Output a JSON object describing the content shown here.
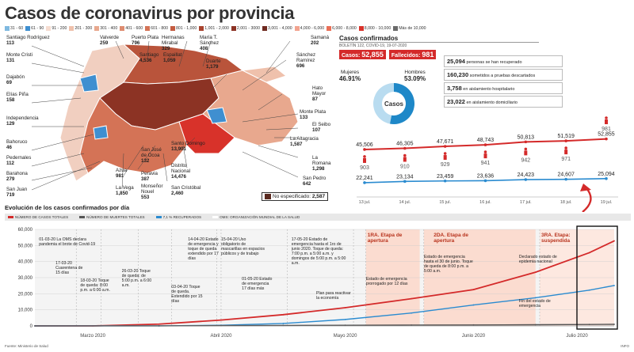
{
  "header": {
    "title": "Casos de coronavirus por provincia"
  },
  "legend_ranges": [
    {
      "label": "31 - 60",
      "color": "#7fb9e0"
    },
    {
      "label": "61 - 90",
      "color": "#3f8fd0"
    },
    {
      "label": "91 - 200",
      "color": "#f6dcd0"
    },
    {
      "label": "201 - 300",
      "color": "#efc1ac"
    },
    {
      "label": "301 - 400",
      "color": "#e8a88e"
    },
    {
      "label": "401 - 600",
      "color": "#de8c70"
    },
    {
      "label": "601 - 800",
      "color": "#d47356"
    },
    {
      "label": "801 - 1,000",
      "color": "#c45b40"
    },
    {
      "label": "1,001 - 2,000",
      "color": "#a8432e"
    },
    {
      "label": "2,001 - 3000",
      "color": "#8c3324"
    },
    {
      "label": "3,001 - 4,000",
      "color": "#6f2a20"
    },
    {
      "label": "4,000 - 6,000",
      "color": "#f2a38f"
    },
    {
      "label": "6,000 - 8,000",
      "color": "#e96f57"
    },
    {
      "label": "8,000 - 10,000",
      "color": "#d8322a"
    },
    {
      "label": "Más de 10,000",
      "color": "#6a6a6a"
    }
  ],
  "provinces": [
    {
      "name": "Santiago Rodríguez",
      "value": "113"
    },
    {
      "name": "Monte Cristi",
      "value": "131"
    },
    {
      "name": "Dajabón",
      "value": "69"
    },
    {
      "name": "Elías Piña",
      "value": "158"
    },
    {
      "name": "Independencia",
      "value": "129"
    },
    {
      "name": "Bahoruco",
      "value": "46"
    },
    {
      "name": "Pedernales",
      "value": "112"
    },
    {
      "name": "Barahona",
      "value": "279"
    },
    {
      "name": "San Juan",
      "value": "719"
    },
    {
      "name": "Valverde",
      "value": "259"
    },
    {
      "name": "Puerto Plata",
      "value": "796"
    },
    {
      "name": "Santiago",
      "value": "4,536"
    },
    {
      "name": "Hermanas Mirabal",
      "value": "329"
    },
    {
      "name": "Espaillat",
      "value": "1,059"
    },
    {
      "name": "María T. Sánchez",
      "value": "408"
    },
    {
      "name": "Duarte",
      "value": "1,179"
    },
    {
      "name": "Samaná",
      "value": "202"
    },
    {
      "name": "Sánchez Ramírez",
      "value": "696"
    },
    {
      "name": "Hato Mayor",
      "value": "87"
    },
    {
      "name": "Monte Plata",
      "value": "133"
    },
    {
      "name": "El Seibo",
      "value": "107"
    },
    {
      "name": "La Altagracia",
      "value": "1,587"
    },
    {
      "name": "La Romana",
      "value": "1,298"
    },
    {
      "name": "San Pedro",
      "value": "642"
    },
    {
      "name": "Santo Domingo",
      "value": "13,901"
    },
    {
      "name": "Distrito Nacional",
      "value": "14,476"
    },
    {
      "name": "San Cristóbal",
      "value": "2,460"
    },
    {
      "name": "San José de Ocoa",
      "value": "132"
    },
    {
      "name": "Peravia",
      "value": "387"
    },
    {
      "name": "Monseñor Nouel",
      "value": "553"
    },
    {
      "name": "Azua",
      "value": "981"
    },
    {
      "name": "La Vega",
      "value": "1,850"
    }
  ],
  "no_especificado": {
    "label": "No especificado",
    "value": "2,587"
  },
  "cases_panel": {
    "title": "Casos confirmados",
    "subtitle": "BOLETÍN 122, COVID-19, 19-07-2020",
    "casos_label": "Casos:",
    "casos_value": "52,855",
    "fallecidos_label": "Fallecidos:",
    "fallecidos_value": "981",
    "mujeres_label": "Mujeres",
    "mujeres_pct": "46.91%",
    "hombres_label": "Hombres",
    "hombres_pct": "53.09%",
    "donut_label": "Casos",
    "stats": [
      {
        "value": "25,094",
        "text": "personas se han recuperado"
      },
      {
        "value": "160,230",
        "text": "sometidos a pruebas descartados"
      },
      {
        "value": "3,758",
        "text": "en aislamiento hospitalario"
      },
      {
        "value": "23,022",
        "text": "en aislamiento domiciliario"
      }
    ],
    "colors": {
      "mujeres": "#b9dcf0",
      "hombres": "#1e88c8"
    }
  },
  "bottom": {
    "title": "Evolución de los casos confirmados por día",
    "legend": [
      {
        "label": "NÚMERO DE CASOS TOTALES",
        "color": "#d42a2a"
      },
      {
        "label": "NÚMERO DE MUERTES TOTALES",
        "color": "#555555"
      },
      {
        "label": "7,1 % RECUPERADOS",
        "color": "#2a8bd0"
      },
      {
        "label": "OMS: ORGANIZACIÓN MUNDIAL DE LA SALUD",
        "color": "#ffffff"
      }
    ],
    "annotations": [
      "01-03-20 La OMS declara pandemia el brote de Covid-19",
      "17-03-20 Cuarentena de 15 días",
      "18-03-20 Toque de queda: 8:00 p.m. a 6:00 a.m.",
      "26-03-20 Toque de queda: de 5:00 p.m. a 6:00 a.m.",
      "03-04-20 Toque de queda. Extendido por 15 días",
      "14-04-20 Estado de emergencia y toque de queda extendido por 17 días",
      "15-04-20 Uso obligatorio de mascarillas en espacios públicos y de trabajo",
      "01-05-20 Estado de emergencia 17 días más",
      "17-05-20 Estado de emergencia hasta el 1ro de junio 2020. Toque de queda: 7:00 p.m. a 5:00 a.m. y domingos de 5:00 p.m. a 5:00 a.m.",
      "Plan para reactivar la economía",
      "Estado de emergencia prorrogado por 12 días",
      "Estado de emergencia hasta el 30 de junio. Toque de queda de 8:00 p.m. a 5:00 a.m.",
      "Declarado estado de epidemia nacional",
      "Fin del estado de emergencia"
    ],
    "phases": [
      {
        "label": "1RA. Etapa de apertura"
      },
      {
        "label": "2DA. Etapa de apertura"
      },
      {
        "label": "3RA. Etapa: suspendida"
      }
    ],
    "months": [
      "Marzo 2020",
      "Abril 2020",
      "Mayo 2020",
      "Junio 2020",
      "Julio 2020"
    ]
  },
  "footer": {
    "source": "Fuente: Ministerio de Salud",
    "code": "INFO"
  },
  "chart_data": [
    {
      "type": "line",
      "title": "",
      "categories": [
        "13 jul.",
        "14 jul.",
        "15 jul.",
        "16 jul.",
        "17 jul.",
        "18 jul.",
        "19 jul."
      ],
      "series": [
        {
          "name": "Casos totales",
          "values": [
            45506,
            46305,
            47671,
            48743,
            50813,
            51519,
            52855
          ],
          "color": "#d42a2a"
        },
        {
          "name": "Recuperados",
          "values": [
            22241,
            23134,
            23459,
            23636,
            24423,
            24607,
            25094
          ],
          "color": "#2a8bd0"
        }
      ],
      "deaths": [
        903,
        910,
        929,
        941,
        942,
        971,
        981
      ],
      "value_labels": {
        "cases": [
          "45,506",
          "46,305",
          "47,671",
          "48,743",
          "50,813",
          "51,519",
          "52,855"
        ],
        "recovered": [
          "22,241",
          "23,134",
          "23,459",
          "23,636",
          "24,423",
          "24,607",
          "25,094"
        ],
        "deaths": [
          "903",
          "910",
          "929",
          "941",
          "942",
          "971",
          "981"
        ]
      }
    },
    {
      "type": "line",
      "title": "Evolución de los casos confirmados por día",
      "ylim": [
        0,
        60000
      ],
      "yticks": [
        0,
        10000,
        20000,
        30000,
        40000,
        50000,
        60000
      ],
      "ytick_labels": [
        "0",
        "10,000",
        "20,000",
        "30,000",
        "40,000",
        "50,000",
        "60,000"
      ],
      "x_start": "2020-03-01",
      "x_end": "2020-07-19",
      "series": [
        {
          "name": "Casos totales",
          "color": "#d42a2a",
          "points": [
            [
              "2020-03-01",
              0
            ],
            [
              "2020-03-15",
              11
            ],
            [
              "2020-03-31",
              1109
            ],
            [
              "2020-04-15",
              3614
            ],
            [
              "2020-04-30",
              6972
            ],
            [
              "2020-05-15",
              11320
            ],
            [
              "2020-05-31",
              16908
            ],
            [
              "2020-06-15",
              22572
            ],
            [
              "2020-06-30",
              33387
            ],
            [
              "2020-07-13",
              45506
            ],
            [
              "2020-07-19",
              52855
            ]
          ]
        },
        {
          "name": "Recuperados",
          "color": "#2a8bd0",
          "points": [
            [
              "2020-03-01",
              0
            ],
            [
              "2020-03-31",
              20
            ],
            [
              "2020-04-15",
              420
            ],
            [
              "2020-04-30",
              1500
            ],
            [
              "2020-05-15",
              4000
            ],
            [
              "2020-05-31",
              8000
            ],
            [
              "2020-06-15",
              13000
            ],
            [
              "2020-06-30",
              17500
            ],
            [
              "2020-07-13",
              22241
            ],
            [
              "2020-07-19",
              25094
            ]
          ]
        },
        {
          "name": "Muertes totales",
          "color": "#555555",
          "points": [
            [
              "2020-03-01",
              0
            ],
            [
              "2020-03-31",
              51
            ],
            [
              "2020-04-15",
              196
            ],
            [
              "2020-04-30",
              301
            ],
            [
              "2020-05-15",
              409
            ],
            [
              "2020-05-31",
              498
            ],
            [
              "2020-06-15",
              576
            ],
            [
              "2020-06-30",
              733
            ],
            [
              "2020-07-13",
              903
            ],
            [
              "2020-07-19",
              981
            ]
          ]
        }
      ]
    }
  ]
}
